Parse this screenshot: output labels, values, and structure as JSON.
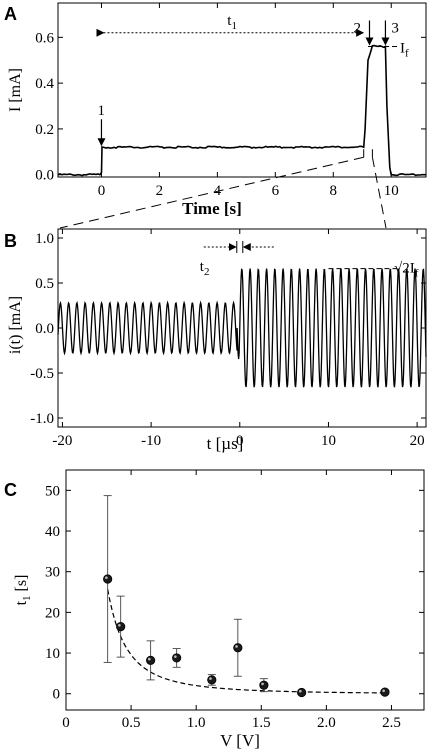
{
  "chart_data": [
    {
      "panel": "A",
      "type": "line",
      "xlabel": "Time [s]",
      "ylabel": "I [mA]",
      "xlim": [
        -1.5,
        11.2
      ],
      "ylim": [
        -0.01,
        0.75
      ],
      "xticks": [
        0,
        2,
        4,
        6,
        8,
        10
      ],
      "yticks": [
        0.0,
        0.2,
        0.4,
        0.6
      ],
      "series": [
        {
          "x": [
            -1.5,
            -0.05,
            0.0,
            0.02,
            9.05,
            9.1,
            9.2,
            9.35,
            9.8,
            9.85,
            9.95,
            10.0,
            11.2
          ],
          "y": [
            0.0,
            0.0,
            0.01,
            0.12,
            0.12,
            0.2,
            0.5,
            0.56,
            0.56,
            0.3,
            0.03,
            0.0,
            0.0
          ]
        }
      ],
      "annotations": [
        {
          "text": "t",
          "sub": "1",
          "span_x": [
            0,
            9.1
          ],
          "y": 0.62
        },
        {
          "text": "1",
          "arrow_x": 0.0,
          "arrow_y": 0.12
        },
        {
          "text": "2",
          "arrow_x": 9.25,
          "arrow_y": 0.56
        },
        {
          "text": "3",
          "arrow_x": 9.8,
          "arrow_y": 0.56
        },
        {
          "text": "I",
          "sub": "f",
          "y": 0.56
        }
      ],
      "grid": false
    },
    {
      "panel": "B",
      "type": "line",
      "xlabel": "t [µs]",
      "ylabel": "i(t) [mA]",
      "xlim": [
        -20.5,
        21
      ],
      "ylim": [
        -1.1,
        1.1
      ],
      "xticks": [
        -20,
        -10,
        0,
        10,
        20
      ],
      "yticks": [
        -1.0,
        -0.5,
        0.0,
        0.5,
        1.0
      ],
      "series": [
        {
          "segment": "before",
          "x_range": [
            -20.5,
            -0.3
          ],
          "amplitude": 0.28,
          "period_us": 0.93
        },
        {
          "segment": "after",
          "x_range": [
            -0.3,
            21
          ],
          "amplitude": 0.66,
          "period_us": 0.93
        }
      ],
      "annotations": [
        {
          "text": "t",
          "sub": "2",
          "x_center": 0.0
        },
        {
          "text": "√2I",
          "sub": "f",
          "y": 0.66
        }
      ],
      "grid": false
    },
    {
      "panel": "C",
      "type": "scatter",
      "xlabel": "V [V]",
      "ylabel": "t",
      "ylabel_sub": "1",
      "ylabel_unit": " [s]",
      "xlim": [
        0,
        2.75
      ],
      "ylim": [
        -4,
        55
      ],
      "xticks": [
        0,
        0.5,
        1.0,
        1.5,
        2.0,
        2.5
      ],
      "xtick_labels": [
        "0",
        "0.5",
        "1.0",
        "1.5",
        "2.0",
        "2.5"
      ],
      "yticks": [
        0,
        10,
        20,
        30,
        40,
        50
      ],
      "points": [
        {
          "x": 0.32,
          "y": 28.2,
          "err": 20.5
        },
        {
          "x": 0.42,
          "y": 16.5,
          "err": 7.5
        },
        {
          "x": 0.65,
          "y": 8.2,
          "err": 4.8
        },
        {
          "x": 0.85,
          "y": 8.8,
          "err": 2.3
        },
        {
          "x": 1.12,
          "y": 3.4,
          "err": 1.3
        },
        {
          "x": 1.32,
          "y": 11.3,
          "err": 7.0
        },
        {
          "x": 1.52,
          "y": 2.1,
          "err": 1.6
        },
        {
          "x": 1.81,
          "y": 0.3,
          "err": 0.4
        },
        {
          "x": 2.45,
          "y": 0.4,
          "err": 0.5
        }
      ],
      "fit": {
        "style": "dashed",
        "x_range": [
          0.32,
          2.45
        ]
      },
      "grid": false
    }
  ]
}
